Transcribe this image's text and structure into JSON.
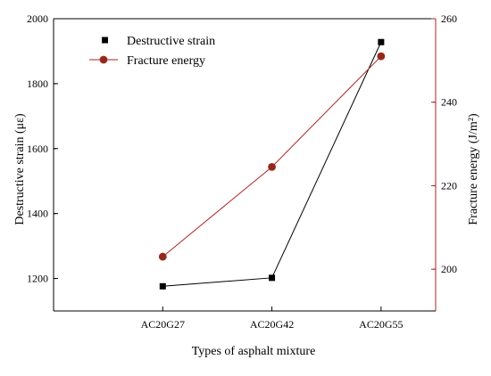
{
  "chart_data": {
    "type": "line",
    "categories": [
      "AC20G27",
      "AC20G42",
      "AC20G55"
    ],
    "xlabel": "Types of asphalt mixture",
    "ylabel_left": "Destructive strain (με)",
    "ylabel_right": "Fracture energy (J/m²)",
    "ylim_left": [
      1100,
      2000
    ],
    "ylim_right": [
      190,
      260
    ],
    "yticks_left": [
      "1200",
      "1400",
      "1600",
      "1800",
      "2000"
    ],
    "yticks_right": [
      "200",
      "220",
      "240",
      "260"
    ],
    "grid": false,
    "legend_position": "top-left",
    "series": [
      {
        "name": "Destructive strain",
        "axis": "left",
        "marker": "square",
        "color": "#000000",
        "values": [
          1176,
          1202,
          1928
        ]
      },
      {
        "name": "Fracture energy",
        "axis": "right",
        "marker": "circle",
        "color": "#b22222",
        "values": [
          203,
          224.5,
          251
        ]
      }
    ]
  }
}
